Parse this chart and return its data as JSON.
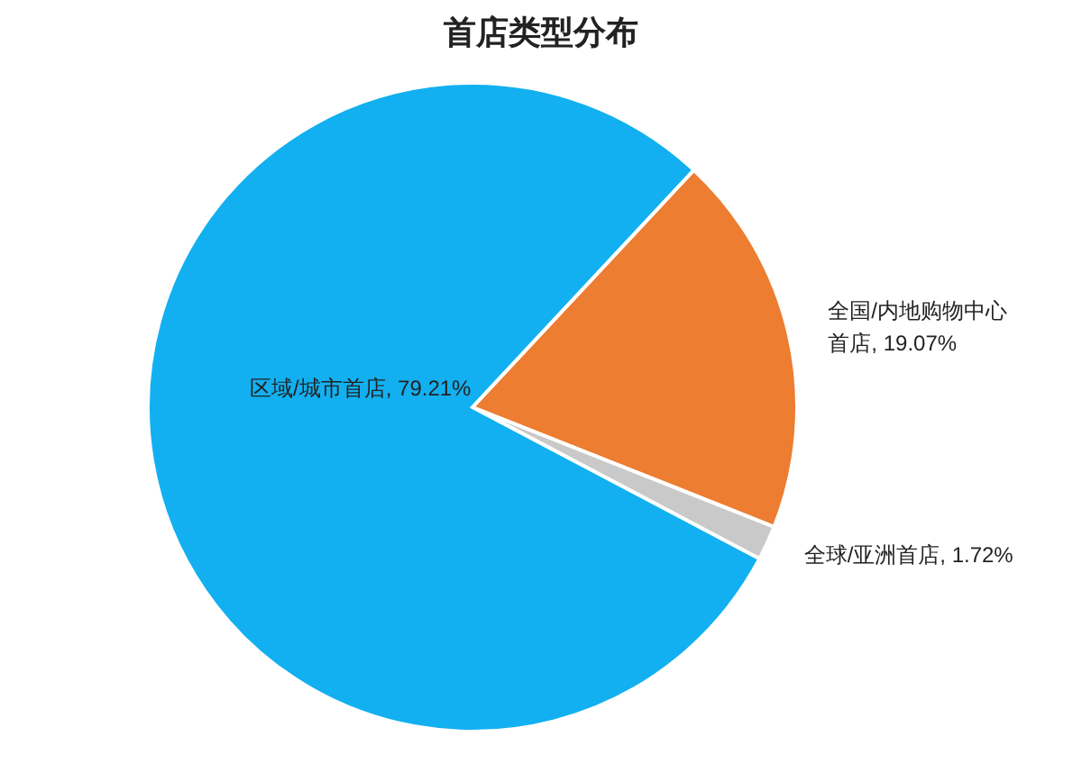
{
  "chart_data": {
    "type": "pie",
    "title": "首店类型分布",
    "categories": [
      "全国/内地购物中心首店",
      "全球/亚洲首店",
      "区域/城市首店"
    ],
    "values": [
      19.07,
      1.72,
      79.21
    ],
    "value_labels": [
      "19.07%",
      "1.72%",
      "79.21%"
    ],
    "colors": [
      "#ed7d31",
      "#c9c9c9",
      "#12b0f0"
    ],
    "legend": false
  }
}
